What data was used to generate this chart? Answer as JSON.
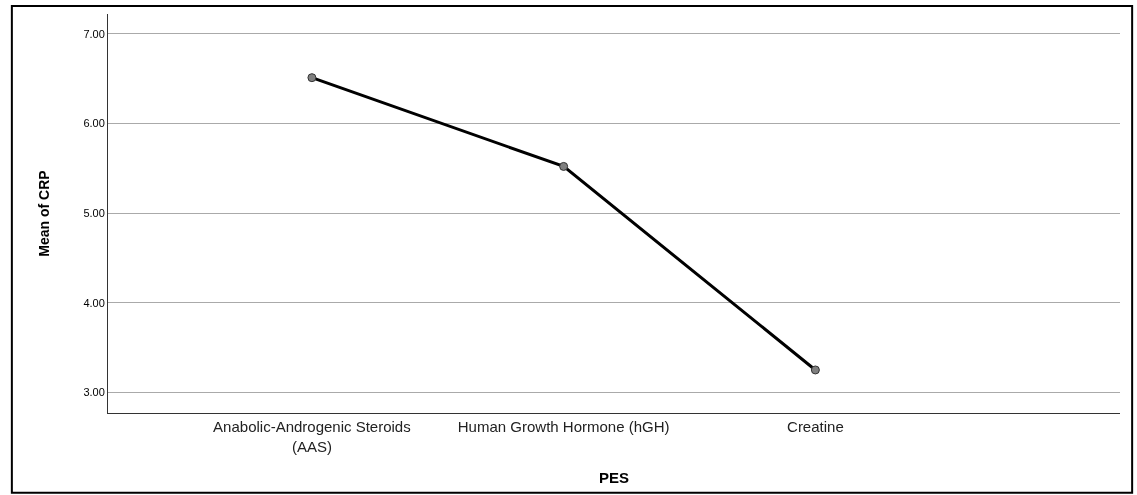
{
  "chart_data": {
    "type": "line",
    "xlabel": "PES",
    "ylabel": "Mean of CRP",
    "categories": [
      "Anabolic-Androgenic Steroids\n(AAS)",
      "Human Growth Hormone (hGH)",
      "Creatine"
    ],
    "series": [
      {
        "color": "#000000",
        "values": [
          6.51,
          5.52,
          3.25
        ]
      }
    ],
    "ylim": [
      2.77,
      7.22
    ],
    "yticks": [
      {
        "value": 3,
        "label": "3.00"
      },
      {
        "value": 4,
        "label": "4.00"
      },
      {
        "value": 5,
        "label": "5.00"
      },
      {
        "value": 6,
        "label": "6.00"
      },
      {
        "value": 7,
        "label": "7.00"
      }
    ],
    "grid": "y",
    "marker": "circle",
    "line_style": "solid"
  }
}
